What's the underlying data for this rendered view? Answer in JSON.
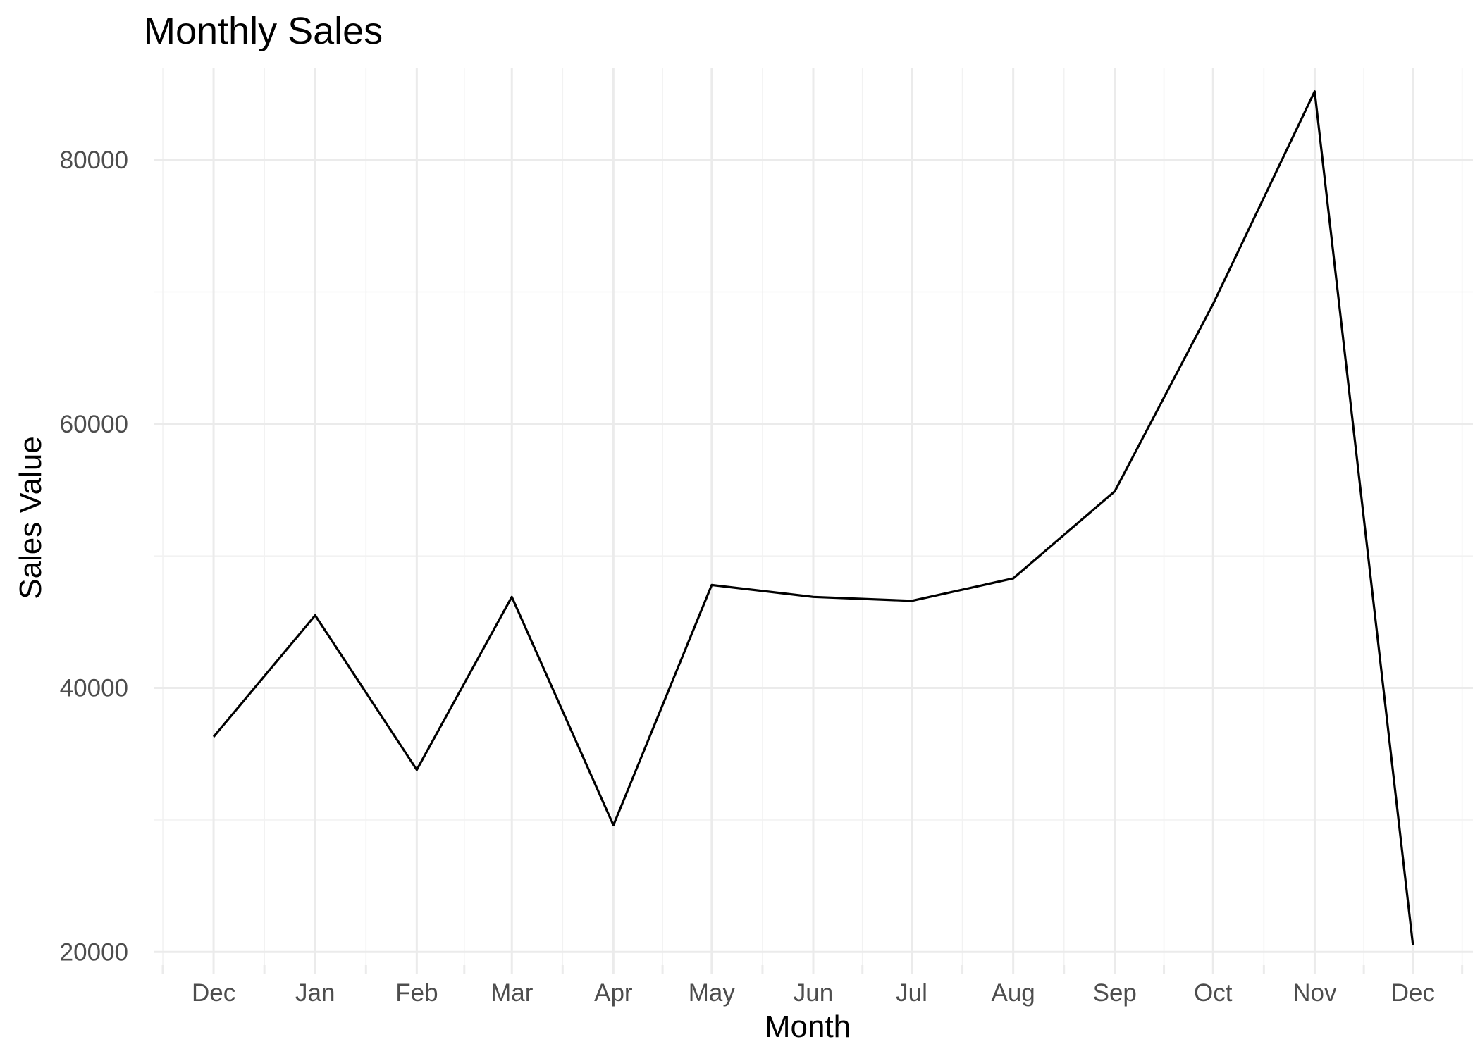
{
  "chart_data": {
    "type": "line",
    "title": "Monthly Sales",
    "xlabel": "Month",
    "ylabel": "Sales Value",
    "x": [
      "2019-12-01",
      "2020-01-01",
      "2020-02-01",
      "2020-03-01",
      "2020-04-01",
      "2020-05-01",
      "2020-06-01",
      "2020-07-01",
      "2020-08-01",
      "2020-09-01",
      "2020-10-01",
      "2020-11-01",
      "2020-12-01"
    ],
    "x_tick_labels": [
      "Dec",
      "Jan",
      "Feb",
      "Mar",
      "Apr",
      "May",
      "Jun",
      "Jul",
      "Aug",
      "Sep",
      "Oct",
      "Nov",
      "Dec"
    ],
    "series": [
      {
        "values": [
          36300,
          45500,
          33800,
          46900,
          29600,
          47800,
          46900,
          46600,
          48300,
          54900,
          69100,
          85200,
          20500
        ]
      }
    ],
    "yticks": [
      20000,
      40000,
      60000,
      80000
    ],
    "ylim": [
      19000,
      87000
    ],
    "grid": true,
    "legend": "none",
    "line_color": "#000000"
  }
}
